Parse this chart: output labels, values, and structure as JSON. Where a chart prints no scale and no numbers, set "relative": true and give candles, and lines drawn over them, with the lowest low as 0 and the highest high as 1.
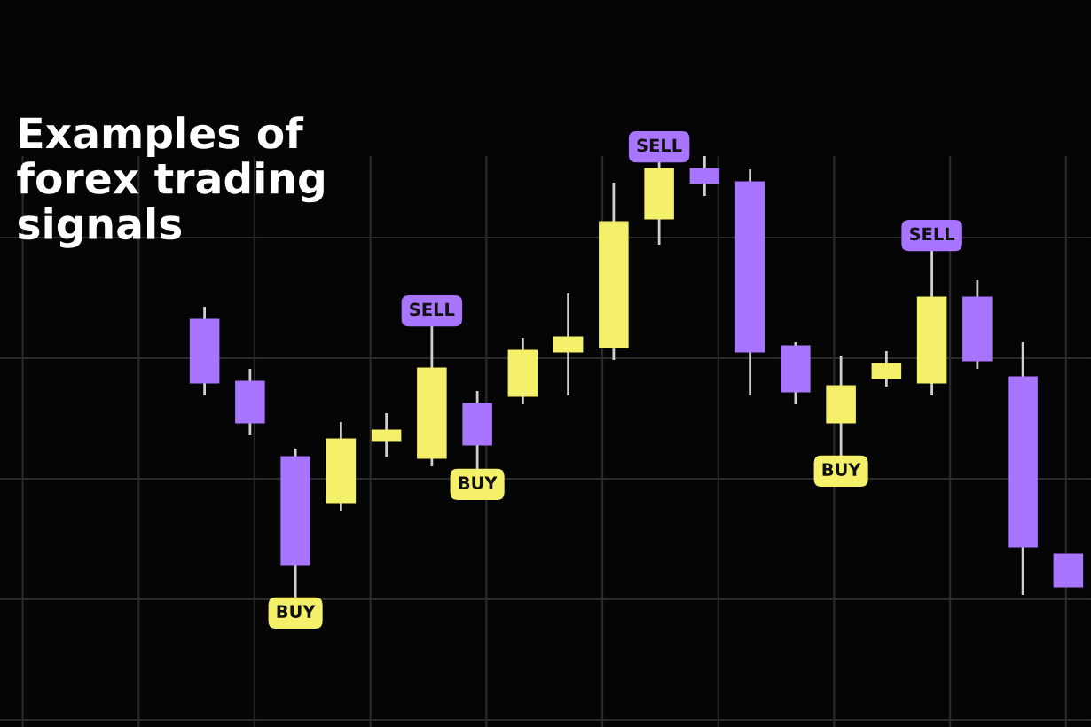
{
  "chart_data": {
    "type": "candlestick",
    "title": "Examples of\nforex trading\nsignals",
    "relative": true,
    "grid": true,
    "categories": [
      null,
      null,
      null,
      null,
      null,
      null,
      null,
      null,
      null,
      null,
      null,
      null,
      null,
      null,
      null,
      null,
      null,
      null,
      null,
      null,
      null,
      null,
      null,
      null
    ],
    "ohlc": [
      null,
      null,
      null,
      null,
      [
        0.63,
        0.66,
        0.46,
        0.49
      ],
      [
        0.49,
        0.52,
        0.37,
        0.4
      ],
      [
        0.32,
        0.34,
        0.0,
        0.08
      ],
      [
        0.22,
        0.4,
        0.2,
        0.36
      ],
      [
        0.36,
        0.42,
        0.32,
        0.38
      ],
      [
        0.32,
        0.62,
        0.3,
        0.52
      ],
      [
        0.44,
        0.47,
        0.29,
        0.35
      ],
      [
        0.46,
        0.59,
        0.44,
        0.56
      ],
      [
        0.56,
        0.69,
        0.46,
        0.59
      ],
      [
        0.57,
        0.94,
        0.54,
        0.85
      ],
      [
        0.86,
        0.99,
        0.8,
        0.97
      ],
      [
        0.97,
        1.0,
        0.91,
        0.94
      ],
      [
        0.94,
        0.97,
        0.46,
        0.56
      ],
      [
        0.57,
        0.58,
        0.44,
        0.47
      ],
      [
        0.4,
        0.55,
        0.32,
        0.48
      ],
      [
        0.5,
        0.56,
        0.48,
        0.53
      ],
      [
        0.49,
        0.79,
        0.46,
        0.68
      ],
      [
        0.68,
        0.72,
        0.52,
        0.54
      ],
      [
        0.5,
        0.58,
        0.01,
        0.12
      ],
      [
        0.1,
        0.1,
        0.03,
        0.03
      ]
    ],
    "colors": [
      null,
      null,
      null,
      null,
      "#a875ff",
      "#a875ff",
      "#a875ff",
      "#f5f06a",
      "#f5f06a",
      "#f5f06a",
      "#a875ff",
      "#f5f06a",
      "#f5f06a",
      "#f5f06a",
      "#f5f06a",
      "#a875ff",
      "#a875ff",
      "#a875ff",
      "#f5f06a",
      "#f5f06a",
      "#f5f06a",
      "#a875ff",
      "#a875ff",
      "#a875ff"
    ],
    "annotations": [
      "BUY",
      "SELL",
      "BUY",
      "SELL",
      "BUY",
      "SELL"
    ]
  }
}
